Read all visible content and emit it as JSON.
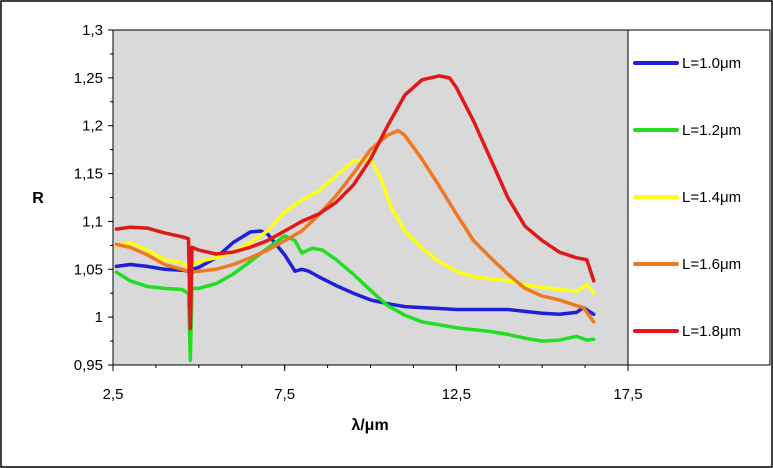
{
  "chart_data": {
    "type": "line",
    "xlabel": "λ/μm",
    "ylabel": "R",
    "xlim": [
      2.5,
      17.5
    ],
    "ylim": [
      0.95,
      1.3
    ],
    "xticks": [
      2.5,
      7.5,
      12.5,
      17.5
    ],
    "xtick_labels": [
      "2,5",
      "7,5",
      "12,5",
      "17,5"
    ],
    "yticks": [
      0.95,
      1.0,
      1.05,
      1.1,
      1.15,
      1.2,
      1.25,
      1.3
    ],
    "ytick_labels": [
      "0,95",
      "1",
      "1,05",
      "1,1",
      "1,15",
      "1,2",
      "1,25",
      "1,3"
    ],
    "grid": false,
    "legend_position": "right",
    "series": [
      {
        "name": "L=1.0μm",
        "color": "#1f1fd6",
        "x": [
          2.6,
          3.0,
          3.5,
          4.0,
          4.5,
          4.7,
          4.75,
          4.8,
          5.0,
          5.5,
          6.0,
          6.5,
          6.8,
          7.0,
          7.5,
          7.8,
          8.0,
          8.2,
          8.5,
          9.0,
          9.5,
          10.0,
          10.5,
          11.0,
          11.5,
          12.0,
          12.5,
          13.0,
          13.5,
          14.0,
          14.5,
          15.0,
          15.5,
          16.0,
          16.2,
          16.5
        ],
        "y": [
          1.053,
          1.055,
          1.053,
          1.05,
          1.049,
          1.048,
          1.04,
          1.05,
          1.052,
          1.062,
          1.078,
          1.089,
          1.09,
          1.087,
          1.065,
          1.048,
          1.05,
          1.048,
          1.042,
          1.033,
          1.025,
          1.018,
          1.014,
          1.011,
          1.01,
          1.009,
          1.008,
          1.008,
          1.008,
          1.008,
          1.006,
          1.004,
          1.003,
          1.005,
          1.01,
          1.003
        ]
      },
      {
        "name": "L=1.2μm",
        "color": "#22dd22",
        "x": [
          2.6,
          3.0,
          3.5,
          4.0,
          4.5,
          4.7,
          4.75,
          4.8,
          5.0,
          5.5,
          6.0,
          6.5,
          7.0,
          7.5,
          7.8,
          8.0,
          8.3,
          8.6,
          9.0,
          9.5,
          10.0,
          10.5,
          11.0,
          11.5,
          12.0,
          12.5,
          13.0,
          13.5,
          14.0,
          14.5,
          15.0,
          15.5,
          16.0,
          16.3,
          16.5
        ],
        "y": [
          1.047,
          1.038,
          1.032,
          1.03,
          1.029,
          1.025,
          0.955,
          1.03,
          1.03,
          1.035,
          1.045,
          1.058,
          1.072,
          1.085,
          1.08,
          1.067,
          1.072,
          1.07,
          1.06,
          1.045,
          1.028,
          1.012,
          1.002,
          0.995,
          0.992,
          0.989,
          0.987,
          0.985,
          0.982,
          0.978,
          0.975,
          0.976,
          0.98,
          0.976,
          0.977
        ]
      },
      {
        "name": "L=1.4μm",
        "color": "#ffff11",
        "x": [
          2.6,
          3.0,
          3.5,
          4.0,
          4.5,
          4.7,
          4.75,
          4.8,
          5.0,
          5.5,
          6.0,
          6.5,
          7.0,
          7.5,
          8.0,
          8.5,
          9.0,
          9.5,
          10.0,
          10.3,
          10.6,
          11.0,
          11.5,
          12.0,
          12.5,
          13.0,
          13.5,
          14.0,
          14.5,
          15.0,
          15.5,
          16.0,
          16.3,
          16.5
        ],
        "y": [
          1.075,
          1.078,
          1.07,
          1.06,
          1.057,
          1.052,
          1.04,
          1.055,
          1.058,
          1.062,
          1.068,
          1.078,
          1.09,
          1.11,
          1.122,
          1.132,
          1.148,
          1.163,
          1.165,
          1.145,
          1.115,
          1.09,
          1.072,
          1.058,
          1.048,
          1.042,
          1.04,
          1.038,
          1.034,
          1.031,
          1.029,
          1.027,
          1.034,
          1.025
        ]
      },
      {
        "name": "L=1.6μm",
        "color": "#f07820",
        "x": [
          2.6,
          3.0,
          3.5,
          4.0,
          4.5,
          4.7,
          4.75,
          4.8,
          5.0,
          5.5,
          6.0,
          6.5,
          7.0,
          7.5,
          8.0,
          8.5,
          9.0,
          9.5,
          10.0,
          10.5,
          10.8,
          11.0,
          11.5,
          12.0,
          12.5,
          13.0,
          13.5,
          14.0,
          14.5,
          15.0,
          15.5,
          16.0,
          16.2,
          16.5
        ],
        "y": [
          1.076,
          1.073,
          1.065,
          1.055,
          1.05,
          1.048,
          1.04,
          1.047,
          1.048,
          1.05,
          1.055,
          1.062,
          1.07,
          1.08,
          1.09,
          1.107,
          1.127,
          1.15,
          1.175,
          1.19,
          1.195,
          1.19,
          1.165,
          1.137,
          1.108,
          1.08,
          1.062,
          1.045,
          1.03,
          1.022,
          1.018,
          1.012,
          1.01,
          0.995
        ]
      },
      {
        "name": "L=1.8μm",
        "color": "#e01818",
        "x": [
          2.6,
          3.0,
          3.5,
          4.0,
          4.5,
          4.7,
          4.75,
          4.8,
          5.0,
          5.5,
          6.0,
          6.5,
          7.0,
          7.5,
          8.0,
          8.5,
          9.0,
          9.5,
          10.0,
          10.5,
          11.0,
          11.5,
          12.0,
          12.3,
          12.5,
          13.0,
          13.5,
          14.0,
          14.5,
          15.0,
          15.5,
          16.0,
          16.3,
          16.5
        ],
        "y": [
          1.092,
          1.094,
          1.093,
          1.088,
          1.084,
          1.082,
          0.988,
          1.073,
          1.07,
          1.066,
          1.068,
          1.073,
          1.08,
          1.09,
          1.1,
          1.108,
          1.12,
          1.138,
          1.165,
          1.2,
          1.232,
          1.248,
          1.252,
          1.25,
          1.24,
          1.205,
          1.165,
          1.125,
          1.095,
          1.08,
          1.068,
          1.062,
          1.06,
          1.038
        ]
      }
    ]
  }
}
